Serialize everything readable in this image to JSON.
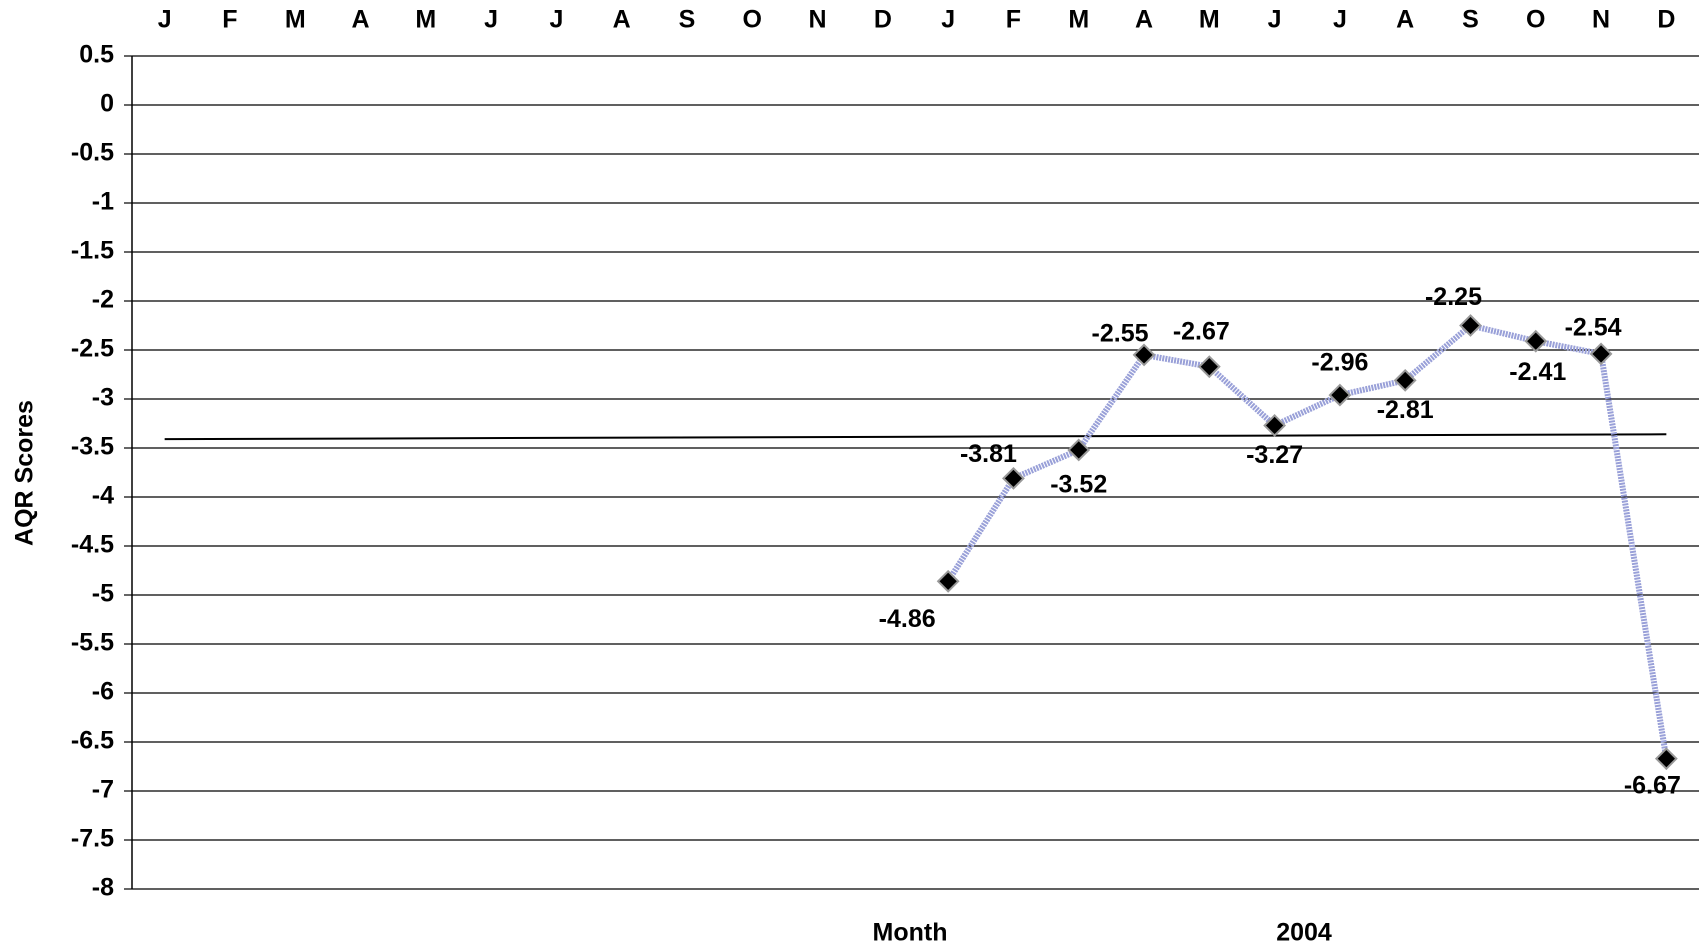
{
  "chart_data": {
    "type": "line",
    "y_label": "AQR Scores",
    "x_label": "Month",
    "year_label": "2004",
    "categories": [
      "J",
      "F",
      "M",
      "A",
      "M",
      "J",
      "J",
      "A",
      "S",
      "O",
      "N",
      "D",
      "J",
      "F",
      "M",
      "A",
      "M",
      "J",
      "J",
      "A",
      "S",
      "O",
      "N",
      "D"
    ],
    "series": [
      {
        "name": "AQR",
        "color": "#99a0d8",
        "values": [
          null,
          null,
          null,
          null,
          null,
          null,
          null,
          null,
          null,
          null,
          null,
          null,
          -4.86,
          -3.81,
          -3.52,
          -2.55,
          -2.67,
          -3.27,
          -2.96,
          -2.81,
          -2.25,
          -2.41,
          -2.54,
          -6.67
        ]
      }
    ],
    "trend": {
      "color": "#000000",
      "values": [
        -3.41,
        -3.36
      ]
    },
    "ylim": [
      -8,
      0.5
    ],
    "yticks": [
      0.5,
      0,
      -0.5,
      -1,
      -1.5,
      -2,
      -2.5,
      -3,
      -3.5,
      -4,
      -4.5,
      -5,
      -5.5,
      -6,
      -6.5,
      -7,
      -7.5,
      -8
    ],
    "grid": true
  }
}
